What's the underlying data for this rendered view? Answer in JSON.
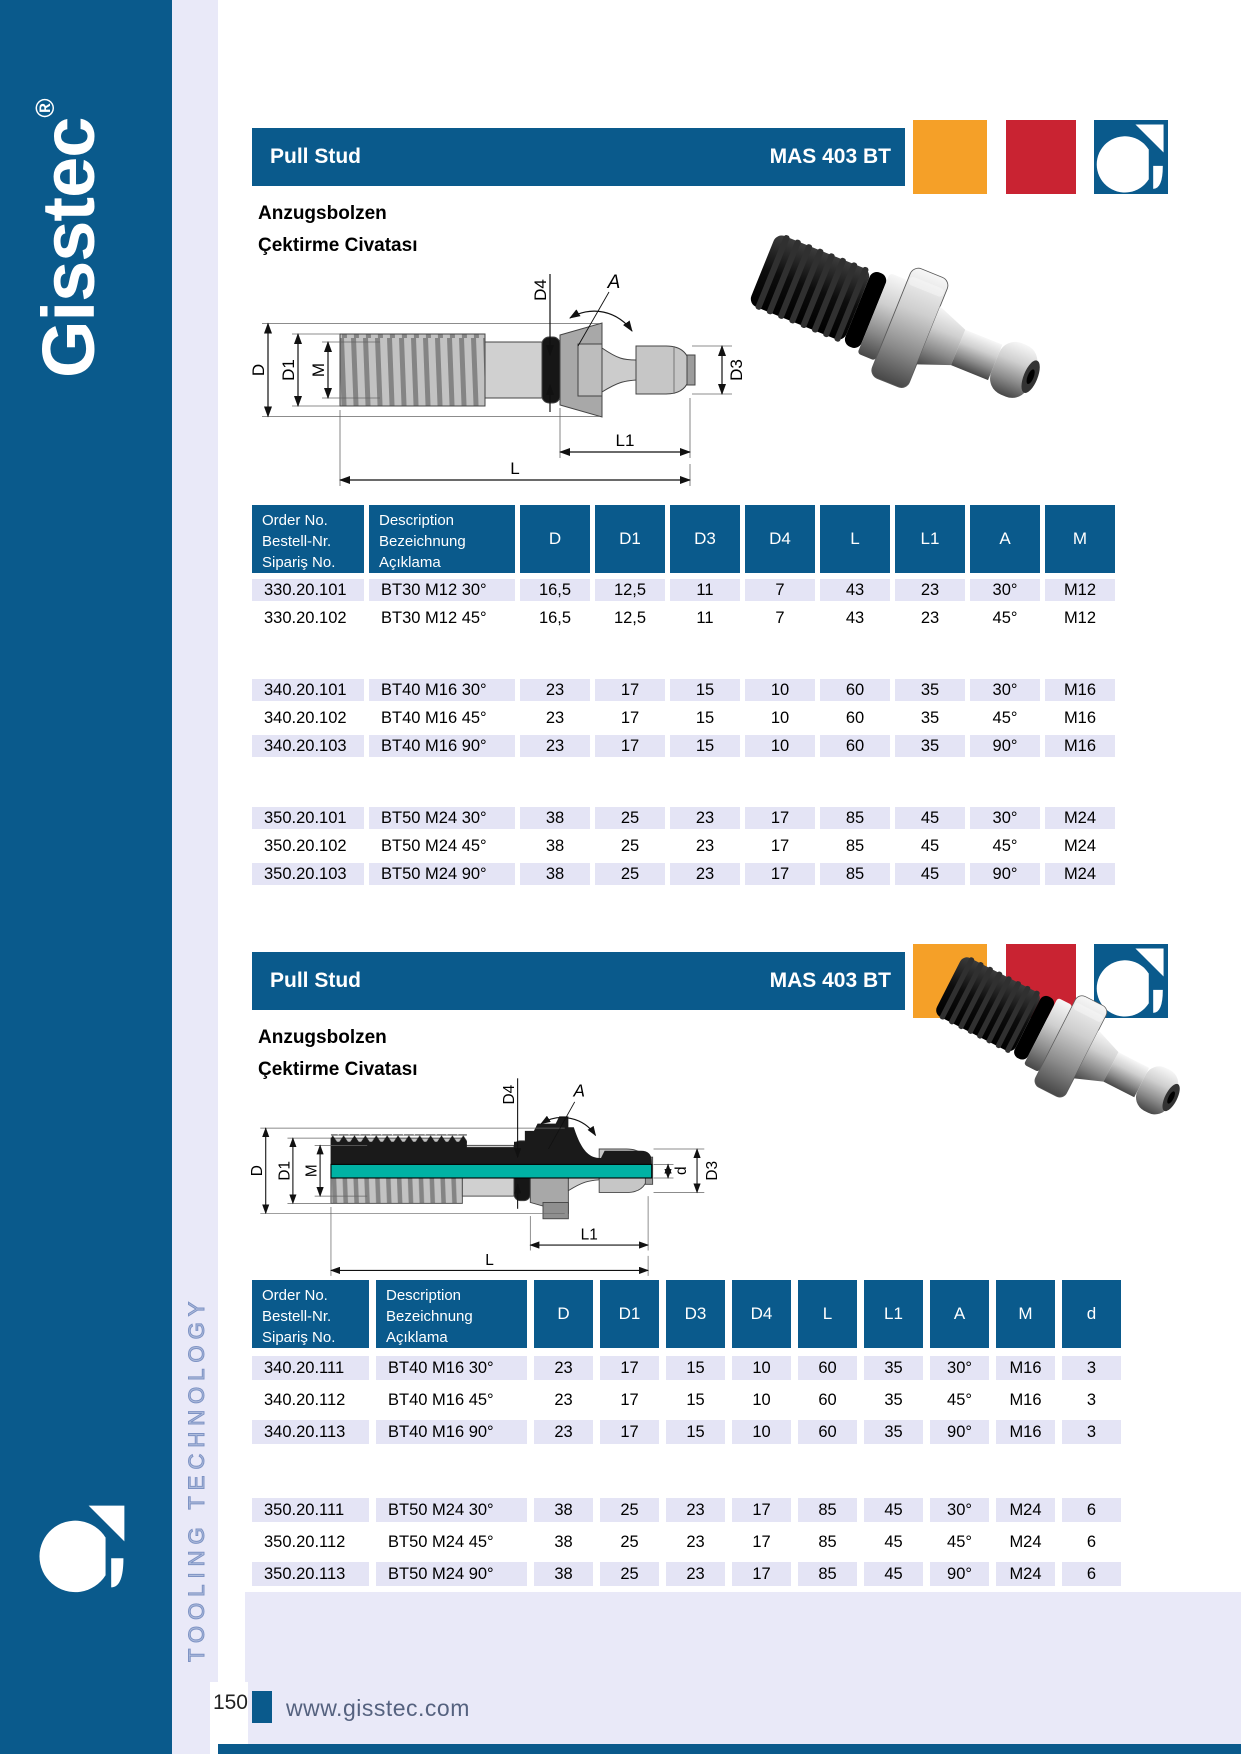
{
  "sidebar": {
    "brand": "Gisstec",
    "registered": "®",
    "tagline": "TOOLING TECHNOLOGY"
  },
  "sections": [
    {
      "title": "Pull Stud",
      "standard": "MAS 403 BT",
      "subtitle_de": "Anzugsbolzen",
      "subtitle_tr": "Çektirme Civatası"
    },
    {
      "title": "Pull Stud",
      "standard": "MAS 403 BT",
      "subtitle_de": "Anzugsbolzen",
      "subtitle_tr": "Çektirme Civatası"
    }
  ],
  "dims": {
    "D": "D",
    "D1": "D1",
    "M": "M",
    "D4": "D4",
    "A": "A",
    "D3": "D3",
    "d": "d",
    "L1": "L1",
    "L": "L"
  },
  "tables": [
    {
      "info_headers": [
        [
          "Order No.",
          "Bestell-Nr.",
          "Sipariş No."
        ],
        [
          "Description",
          "Bezeichnung",
          "Açıklama"
        ]
      ],
      "dim_headers": [
        "D",
        "D1",
        "D3",
        "D4",
        "L",
        "L1",
        "A",
        "M"
      ],
      "groups": [
        [
          [
            "330.20.101",
            "BT30 M12 30°",
            "16,5",
            "12,5",
            "11",
            "7",
            "43",
            "23",
            "30°",
            "M12"
          ],
          [
            "330.20.102",
            "BT30 M12 45°",
            "16,5",
            "12,5",
            "11",
            "7",
            "43",
            "23",
            "45°",
            "M12"
          ]
        ],
        [
          [
            "340.20.101",
            "BT40 M16 30°",
            "23",
            "17",
            "15",
            "10",
            "60",
            "35",
            "30°",
            "M16"
          ],
          [
            "340.20.102",
            "BT40 M16 45°",
            "23",
            "17",
            "15",
            "10",
            "60",
            "35",
            "45°",
            "M16"
          ],
          [
            "340.20.103",
            "BT40 M16 90°",
            "23",
            "17",
            "15",
            "10",
            "60",
            "35",
            "90°",
            "M16"
          ]
        ],
        [
          [
            "350.20.101",
            "BT50 M24 30°",
            "38",
            "25",
            "23",
            "17",
            "85",
            "45",
            "30°",
            "M24"
          ],
          [
            "350.20.102",
            "BT50 M24 45°",
            "38",
            "25",
            "23",
            "17",
            "85",
            "45",
            "45°",
            "M24"
          ],
          [
            "350.20.103",
            "BT50 M24 90°",
            "38",
            "25",
            "23",
            "17",
            "85",
            "45",
            "90°",
            "M24"
          ]
        ]
      ]
    },
    {
      "info_headers": [
        [
          "Order No.",
          "Bestell-Nr.",
          "Sipariş No."
        ],
        [
          "Description",
          "Bezeichnung",
          "Açıklama"
        ]
      ],
      "dim_headers": [
        "D",
        "D1",
        "D3",
        "D4",
        "L",
        "L1",
        "A",
        "M",
        "d"
      ],
      "groups": [
        [
          [
            "340.20.111",
            "BT40 M16 30°",
            "23",
            "17",
            "15",
            "10",
            "60",
            "35",
            "30°",
            "M16",
            "3"
          ],
          [
            "340.20.112",
            "BT40 M16 45°",
            "23",
            "17",
            "15",
            "10",
            "60",
            "35",
            "45°",
            "M16",
            "3"
          ],
          [
            "340.20.113",
            "BT40 M16 90°",
            "23",
            "17",
            "15",
            "10",
            "60",
            "35",
            "90°",
            "M16",
            "3"
          ]
        ],
        [
          [
            "350.20.111",
            "BT50 M24 30°",
            "38",
            "25",
            "23",
            "17",
            "85",
            "45",
            "30°",
            "M24",
            "6"
          ],
          [
            "350.20.112",
            "BT50 M24 45°",
            "38",
            "25",
            "23",
            "17",
            "85",
            "45",
            "45°",
            "M24",
            "6"
          ],
          [
            "350.20.113",
            "BT50 M24 90°",
            "38",
            "25",
            "23",
            "17",
            "85",
            "45",
            "90°",
            "M24",
            "6"
          ]
        ]
      ]
    }
  ],
  "footer": {
    "page_number": "150",
    "website": "www.gisstec.com"
  },
  "colors": {
    "brand_blue": "#0a5a8c",
    "accent_orange": "#f5a028",
    "accent_red": "#c92332",
    "coolant_teal": "#00b2a4",
    "row_shade": "#e4e4f5",
    "band": "#e9e9f8"
  }
}
